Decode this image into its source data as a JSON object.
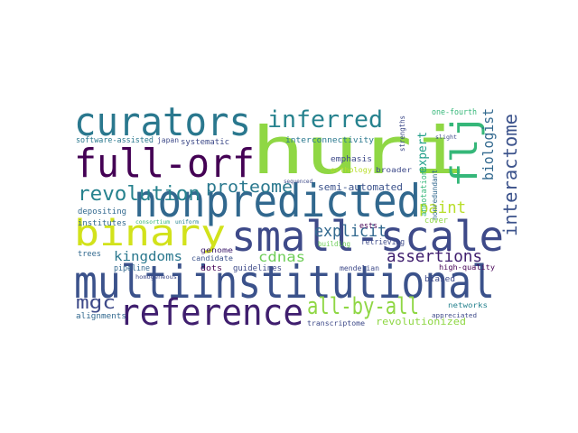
{
  "wordcloud": {
    "words": [
      {
        "text": "huri",
        "color": "#8fd744"
      },
      {
        "text": "multiinstitutional",
        "color": "#3b528b"
      },
      {
        "text": "nonpredicted",
        "color": "#31688e"
      },
      {
        "text": "small-scale",
        "color": "#3e4a89"
      },
      {
        "text": "curators",
        "color": "#2a788e"
      },
      {
        "text": "full-orf",
        "color": "#440154"
      },
      {
        "text": "reference",
        "color": "#3f1e6e"
      },
      {
        "text": "binary",
        "color": "#d2e21b"
      },
      {
        "text": "flj",
        "color": "#35b779"
      },
      {
        "text": "inferred",
        "color": "#26828e"
      },
      {
        "text": "revolution",
        "color": "#26828e"
      },
      {
        "text": "all-by-all",
        "color": "#8fd744"
      },
      {
        "text": "interactome",
        "color": "#3b528b"
      },
      {
        "text": "proteome",
        "color": "#2a788e"
      },
      {
        "text": "explicit",
        "color": "#31688e"
      },
      {
        "text": "biologist",
        "color": "#31688e"
      },
      {
        "text": "paint",
        "color": "#b8de29"
      },
      {
        "text": "assertions",
        "color": "#3f1e6e"
      },
      {
        "text": "mgc",
        "color": "#3e4a89"
      },
      {
        "text": "kingdoms",
        "color": "#2a788e"
      },
      {
        "text": "cdnas",
        "color": "#6ece58"
      },
      {
        "text": "revolutionized",
        "color": "#8fd744"
      },
      {
        "text": "semi-automated",
        "color": "#3b528b"
      },
      {
        "text": "expert",
        "color": "#1f9e89"
      },
      {
        "text": "nonredundant",
        "color": "#31688e"
      },
      {
        "text": "annotations",
        "color": "#35b779"
      },
      {
        "text": "interconnectivity",
        "color": "#2a788e"
      },
      {
        "text": "software-assisted",
        "color": "#2a788e"
      },
      {
        "text": "one-fourth",
        "color": "#35b779"
      },
      {
        "text": "systematic",
        "color": "#3e4a89"
      },
      {
        "text": "emphasis",
        "color": "#3e4a89"
      },
      {
        "text": "orthology",
        "color": "#b8de29"
      },
      {
        "text": "broader",
        "color": "#3e4a89"
      },
      {
        "text": "biased",
        "color": "#3e4a89"
      },
      {
        "text": "depositing",
        "color": "#31688e"
      },
      {
        "text": "institutes",
        "color": "#31688e"
      },
      {
        "text": "dots",
        "color": "#440154"
      },
      {
        "text": "genome",
        "color": "#3f1e6e"
      },
      {
        "text": "candidate",
        "color": "#3b528b"
      },
      {
        "text": "guidelines",
        "color": "#3e4a89"
      },
      {
        "text": "retrieving",
        "color": "#3e4a89"
      },
      {
        "text": "mendelian",
        "color": "#3e4a89"
      },
      {
        "text": "pipeline",
        "color": "#31688e"
      },
      {
        "text": "trees",
        "color": "#31688e"
      },
      {
        "text": "alignments",
        "color": "#31688e"
      },
      {
        "text": "high-quality",
        "color": "#440154"
      },
      {
        "text": "networks",
        "color": "#26828e"
      },
      {
        "text": "appreciated",
        "color": "#3e4a89"
      },
      {
        "text": "transcriptome",
        "color": "#3e4a89"
      },
      {
        "text": "japan",
        "color": "#3e4a89"
      },
      {
        "text": "sequenced",
        "color": "#3e4a89"
      },
      {
        "text": "strengths",
        "color": "#3e4a89"
      },
      {
        "text": "ests",
        "color": "#440154"
      },
      {
        "text": "consortium",
        "color": "#35b779"
      },
      {
        "text": "building",
        "color": "#6ece58"
      },
      {
        "text": "cover",
        "color": "#8fd744"
      },
      {
        "text": "uniform",
        "color": "#26828e"
      },
      {
        "text": "slight",
        "color": "#3e4a89"
      },
      {
        "text": "homogeneous",
        "color": "#3e4a89"
      }
    ]
  }
}
